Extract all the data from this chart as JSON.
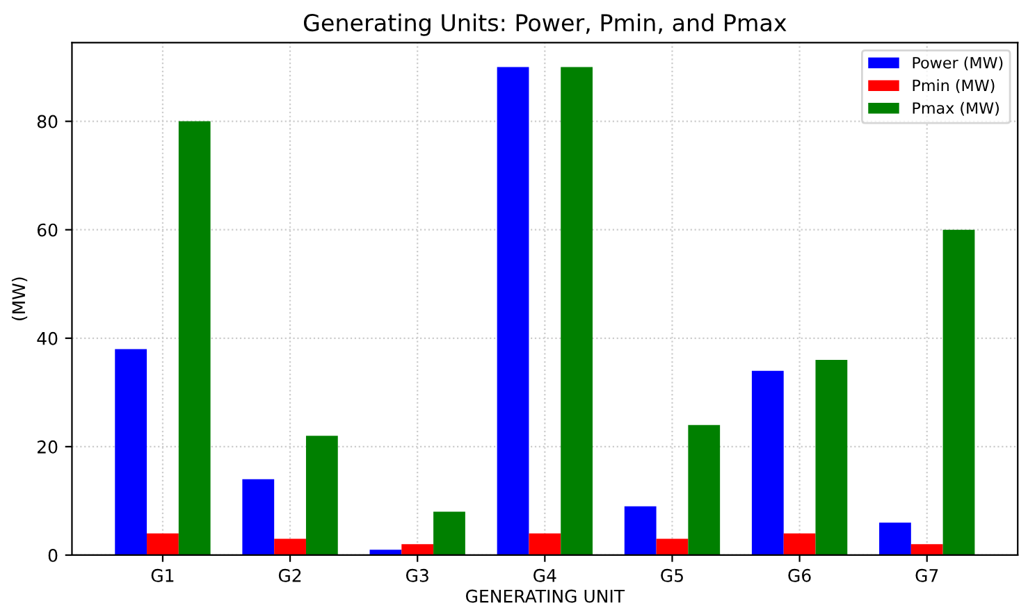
{
  "chart_data": {
    "type": "bar",
    "title": "Generating Units: Power, Pmin, and Pmax",
    "xlabel": "GENERATING UNIT",
    "ylabel": "(MW)",
    "categories": [
      "G1",
      "G2",
      "G3",
      "G4",
      "G5",
      "G6",
      "G7"
    ],
    "series": [
      {
        "name": "Power (MW)",
        "color": "#0000ff",
        "values": [
          38,
          14,
          1,
          90,
          9,
          34,
          6
        ]
      },
      {
        "name": "Pmin (MW)",
        "color": "#ff0000",
        "values": [
          4,
          3,
          2,
          4,
          3,
          4,
          2
        ]
      },
      {
        "name": "Pmax (MW)",
        "color": "#008000",
        "values": [
          80,
          22,
          8,
          90,
          24,
          36,
          60
        ]
      }
    ],
    "ylim": [
      0,
      94.5
    ],
    "yticks": [
      0,
      20,
      40,
      60,
      80
    ],
    "grid": true,
    "legend": "top right"
  }
}
